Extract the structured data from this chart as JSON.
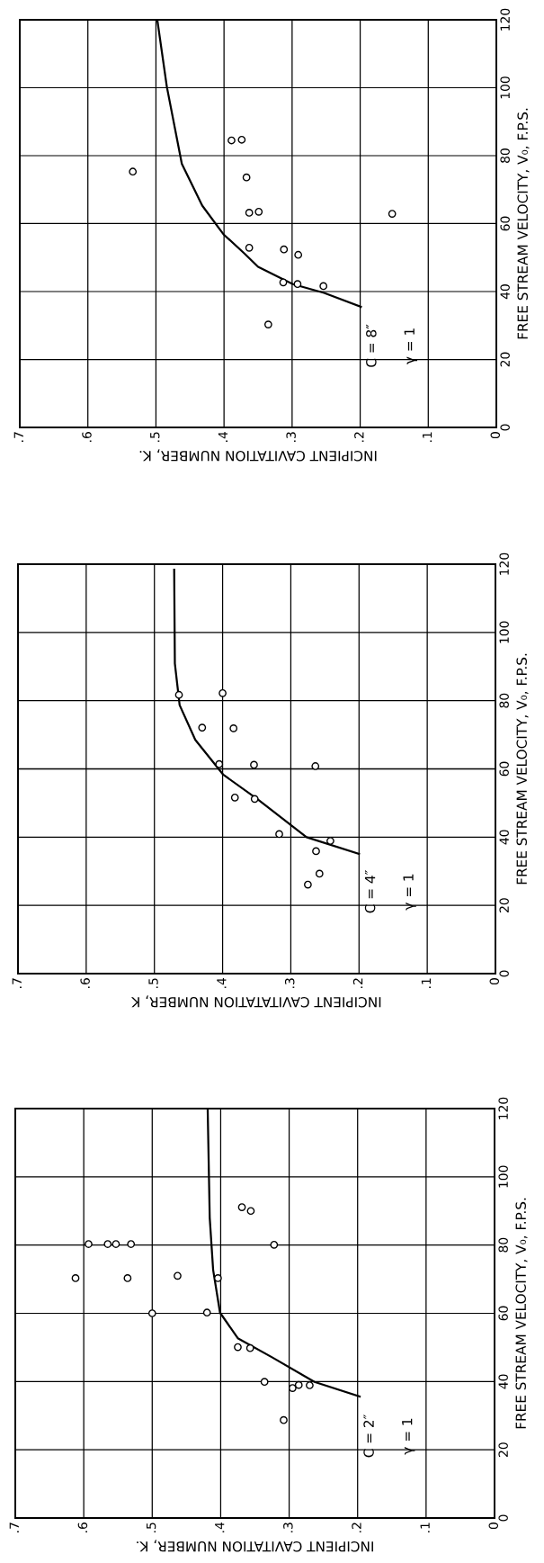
{
  "chart_data": [
    {
      "type": "scatter",
      "xlabel": "INCIPIENT CAVITATION NUMBER, K.",
      "ylabel": "FREE STREAM VELOCITY, V₀, F.P.S.",
      "annotations": [
        "C = 8″",
        "γ = 1"
      ],
      "ylim": [
        0,
        120
      ],
      "yticks": [
        0,
        20,
        40,
        60,
        80,
        100,
        120
      ],
      "xlim": [
        0.7,
        0
      ],
      "xticks": [
        {
          "value": 0,
          "label": "0"
        },
        {
          "value": 0.1,
          "label": ".1"
        },
        {
          "value": 0.2,
          "label": ".2"
        },
        {
          "value": 0.3,
          "label": ".3"
        },
        {
          "value": 0.4,
          "label": ".4"
        },
        {
          "value": 0.5,
          "label": ".5"
        },
        {
          "value": 0.6,
          "label": ".6"
        },
        {
          "value": 0.7,
          "label": ".7"
        }
      ],
      "grid": true,
      "line_style": "solid",
      "series": [
        {
          "marker": "circle",
          "color": "#000000",
          "x": [
            0.534,
            0.389,
            0.374,
            0.367,
            0.363,
            0.349,
            0.363,
            0.312,
            0.291,
            0.313,
            0.292,
            0.254,
            0.335,
            0.153
          ],
          "values": [
            75.3,
            84.5,
            84.7,
            73.6,
            63.2,
            63.5,
            52.9,
            52.4,
            50.8,
            42.7,
            42.2,
            41.6,
            30.3,
            62.9
          ]
        },
        {
          "type": "line",
          "color": "#000000",
          "x": [
            0.199,
            0.253,
            0.299,
            0.35,
            0.37,
            0.401,
            0.432,
            0.462,
            0.484,
            0.498
          ],
          "values": [
            35.5,
            39.6,
            42.2,
            47.3,
            51.2,
            56.9,
            65.3,
            77.6,
            100.3,
            120
          ]
        }
      ]
    },
    {
      "type": "scatter",
      "xlabel": "INCIPIENT CAVITATATION NUMBER, K",
      "ylabel": "FREE STREAM VELOCITY, V₀, F.P.S.",
      "annotations": [
        "C = 4″",
        "γ = 1"
      ],
      "ylim": [
        0,
        120
      ],
      "yticks": [
        0,
        20,
        40,
        60,
        80,
        100,
        120
      ],
      "xlim": [
        0.7,
        0
      ],
      "xticks": [
        {
          "value": 0,
          "label": "0"
        },
        {
          "value": 0.1,
          "label": ".1"
        },
        {
          "value": 0.2,
          "label": ".2"
        },
        {
          "value": 0.3,
          "label": ".3"
        },
        {
          "value": 0.4,
          "label": ".4"
        },
        {
          "value": 0.5,
          "label": ".5"
        },
        {
          "value": 0.6,
          "label": ".6"
        },
        {
          "value": 0.7,
          "label": ".7"
        }
      ],
      "grid": true,
      "line_style": "solid",
      "series": [
        {
          "marker": "circle",
          "color": "#000000",
          "x": [
            0.464,
            0.4,
            0.43,
            0.384,
            0.405,
            0.354,
            0.264,
            0.382,
            0.353,
            0.317,
            0.242,
            0.263,
            0.258,
            0.275
          ],
          "values": [
            81.7,
            82.2,
            72.1,
            71.9,
            61.4,
            61.2,
            60.8,
            51.6,
            51.2,
            40.9,
            38.9,
            35.9,
            29.3,
            26.1
          ]
        },
        {
          "type": "line",
          "color": "#000000",
          "x": [
            0.2,
            0.277,
            0.348,
            0.399,
            0.44,
            0.463,
            0.47,
            0.471
          ],
          "values": [
            35.1,
            40.0,
            51.0,
            58.3,
            68.5,
            78.7,
            90.9,
            118.4
          ]
        }
      ]
    },
    {
      "type": "scatter",
      "xlabel": "INCIPIENT CAVITATION NUMBER, K.",
      "ylabel": "FREE STREAM VELOCITY, V₀, F.P.S.",
      "annotations": [
        "C = 2″",
        "γ = 1"
      ],
      "ylim": [
        0,
        120
      ],
      "yticks": [
        0,
        20,
        40,
        60,
        80,
        100,
        120
      ],
      "xlim": [
        0.7,
        0
      ],
      "xticks": [
        {
          "value": 0,
          "label": "0"
        },
        {
          "value": 0.1,
          "label": ".1"
        },
        {
          "value": 0.2,
          "label": ".2"
        },
        {
          "value": 0.3,
          "label": ".3"
        },
        {
          "value": 0.4,
          "label": ".4"
        },
        {
          "value": 0.5,
          "label": ".5"
        },
        {
          "value": 0.6,
          "label": ".6"
        },
        {
          "value": 0.7,
          "label": ".7"
        }
      ],
      "grid": true,
      "line_style": "solid",
      "series": [
        {
          "marker": "circle",
          "color": "#000000",
          "x": [
            0.612,
            0.593,
            0.565,
            0.553,
            0.531,
            0.536,
            0.463,
            0.5,
            0.42,
            0.404,
            0.322,
            0.369,
            0.356,
            0.375,
            0.357,
            0.336,
            0.295,
            0.286,
            0.27,
            0.308
          ],
          "values": [
            70.3,
            80.3,
            80.3,
            80.3,
            80.3,
            70.3,
            71.0,
            60,
            60.2,
            70.3,
            80.1,
            91.1,
            90.0,
            50.1,
            49.8,
            39.9,
            38.1,
            39.0,
            38.9,
            28.7
          ]
        },
        {
          "type": "line",
          "color": "#000000",
          "x": [
            0.197,
            0.263,
            0.325,
            0.375,
            0.401,
            0.411,
            0.416,
            0.419
          ],
          "values": [
            35.6,
            39.9,
            47.1,
            52.7,
            60.2,
            72.7,
            88.0,
            120
          ]
        }
      ]
    }
  ]
}
